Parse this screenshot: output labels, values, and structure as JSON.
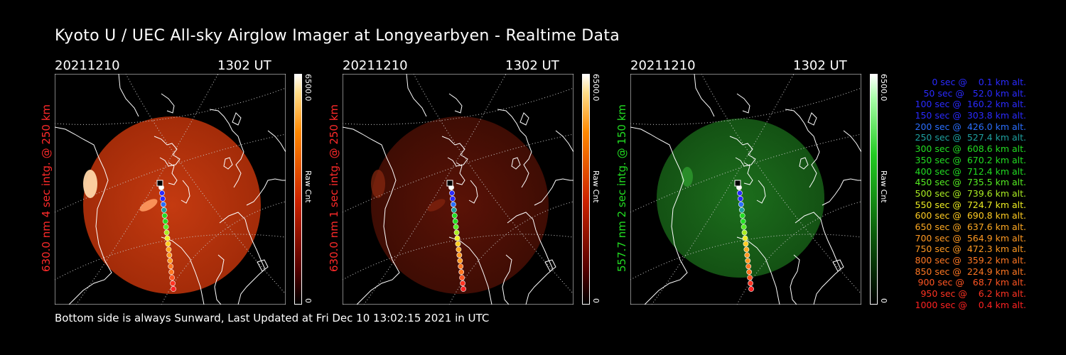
{
  "title": "Kyoto U / UEC All-sky Airglow Imager at Longyearbyen - Realtime Data",
  "footer": "Bottom side is always Sunward, Last Updated at Fri Dec 10 13:02:15 2021 in UTC",
  "panels": [
    {
      "date": "20211210",
      "time": "1302 UT",
      "side_label": "630.0 nm 4 sec intg. @ 250 km",
      "side_color": "#ff2a2a",
      "cb_max": "6500.0",
      "cb_min": "0",
      "cb_unit": "Raw Cnt",
      "palette": "red",
      "brightness": "bright"
    },
    {
      "date": "20211210",
      "time": "1302 UT",
      "side_label": "630.0 nm 1 sec intg. @ 250 km",
      "side_color": "#ff2a2a",
      "cb_max": "6500.0",
      "cb_min": "0",
      "cb_unit": "Raw Cnt",
      "palette": "red",
      "brightness": "dim"
    },
    {
      "date": "20211210",
      "time": "1302 UT",
      "side_label": "557.7 nm 2 sec intg. @ 150 km",
      "side_color": "#22dd22",
      "cb_max": "6500.0",
      "cb_min": "0",
      "cb_unit": "Raw Cnt",
      "palette": "green",
      "brightness": "medium"
    }
  ],
  "legend": [
    {
      "text": "   0 sec @    0.1 km alt.",
      "color": "#2a2aff"
    },
    {
      "text": "  50 sec @   52.0 km alt.",
      "color": "#2a2aff"
    },
    {
      "text": " 100 sec @  160.2 km alt.",
      "color": "#2a2aff"
    },
    {
      "text": " 150 sec @  303.8 km alt.",
      "color": "#2a2aff"
    },
    {
      "text": " 200 sec @  426.0 km alt.",
      "color": "#2a6fff"
    },
    {
      "text": " 250 sec @  527.4 km alt.",
      "color": "#1ea0a0"
    },
    {
      "text": " 300 sec @  608.6 km alt.",
      "color": "#22dd22"
    },
    {
      "text": " 350 sec @  670.2 km alt.",
      "color": "#22dd22"
    },
    {
      "text": " 400 sec @  712.4 km alt.",
      "color": "#22dd22"
    },
    {
      "text": " 450 sec @  735.5 km alt.",
      "color": "#55ee22"
    },
    {
      "text": " 500 sec @  739.6 km alt.",
      "color": "#aaee22"
    },
    {
      "text": " 550 sec @  724.7 km alt.",
      "color": "#eeee22"
    },
    {
      "text": " 600 sec @  690.8 km alt.",
      "color": "#ffcc22"
    },
    {
      "text": " 650 sec @  637.6 km alt.",
      "color": "#ffaa22"
    },
    {
      "text": " 700 sec @  564.9 km alt.",
      "color": "#ff9922"
    },
    {
      "text": " 750 sec @  472.3 km alt.",
      "color": "#ff9922"
    },
    {
      "text": " 800 sec @  359.2 km alt.",
      "color": "#ff7722"
    },
    {
      "text": " 850 sec @  224.9 km alt.",
      "color": "#ff7722"
    },
    {
      "text": " 900 sec @   68.7 km alt.",
      "color": "#ff5522"
    },
    {
      "text": " 950 sec @    6.2 km alt.",
      "color": "#ff3322"
    },
    {
      "text": "1000 sec @    0.4 km alt.",
      "color": "#ff2222"
    }
  ]
}
